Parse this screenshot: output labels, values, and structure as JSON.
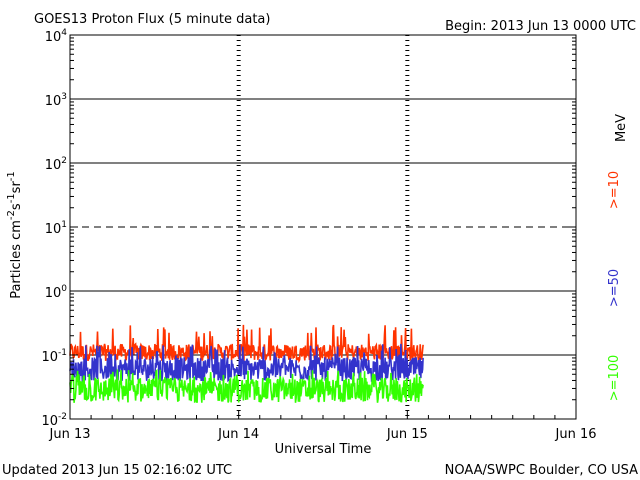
{
  "chart_data": {
    "type": "line",
    "title": "GOES13 Proton Flux (5 minute data)",
    "begin_label": "Begin: 2013 Jun 13 0000 UTC",
    "xlabel": "Universal Time",
    "ylabel": "Particles cm⁻²s⁻¹sr⁻¹",
    "footer_left": "Updated 2013 Jun 15 02:16:02 UTC",
    "footer_right": "NOAA/SWPC Boulder, CO USA",
    "x_tick_labels": [
      "Jun 13",
      "Jun 14",
      "Jun 15",
      "Jun 16"
    ],
    "xlim_hours": [
      0,
      72
    ],
    "data_end_hours": 50.3,
    "y_scale": "log",
    "ylim": [
      0.01,
      10000
    ],
    "y_ticks": [
      {
        "mantissa": "10",
        "exp": "4"
      },
      {
        "mantissa": "10",
        "exp": "3"
      },
      {
        "mantissa": "10",
        "exp": "2"
      },
      {
        "mantissa": "10",
        "exp": "1"
      },
      {
        "mantissa": "10",
        "exp": "0"
      },
      {
        "mantissa": "10",
        "exp": "-1"
      },
      {
        "mantissa": "10",
        "exp": "-2"
      }
    ],
    "solid_gridlines": [
      1000,
      100,
      1,
      0.1
    ],
    "dashed_gridlines": [
      10
    ],
    "unit_label": "MeV",
    "series": [
      {
        "name": ">=10",
        "color": "#ff3300",
        "typical": 0.11,
        "range": [
          0.075,
          0.3
        ]
      },
      {
        "name": ">=50",
        "color": "#3333cc",
        "typical": 0.06,
        "range": [
          0.035,
          0.15
        ]
      },
      {
        "name": ">=100",
        "color": "#33ff00",
        "typical": 0.028,
        "range": [
          0.016,
          0.06
        ]
      }
    ]
  }
}
